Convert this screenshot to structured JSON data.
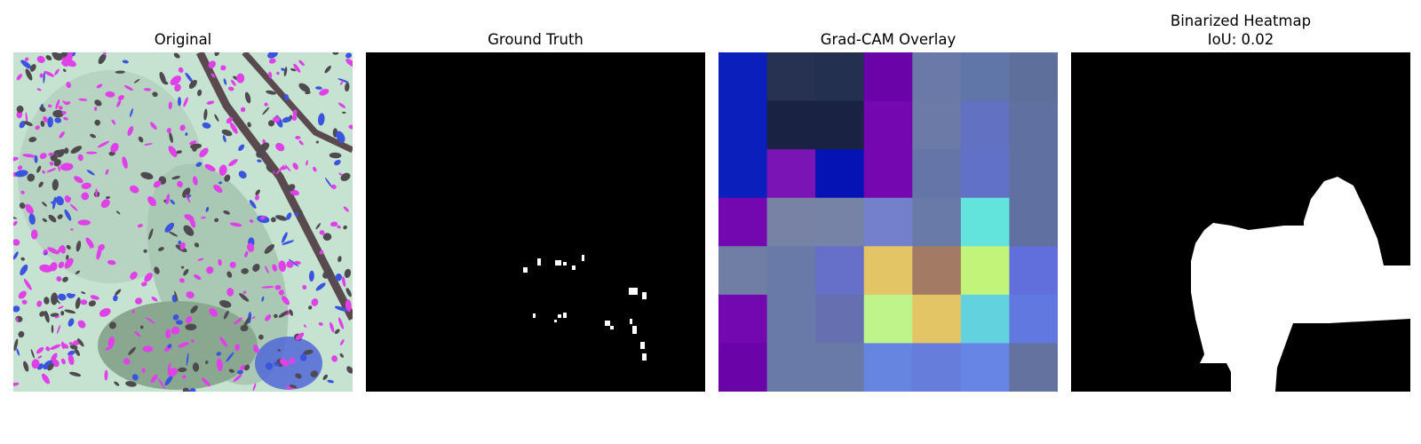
{
  "figure": {
    "panels": [
      {
        "title": "Original",
        "subtitle": ""
      },
      {
        "title": "Ground Truth",
        "subtitle": ""
      },
      {
        "title": "Grad-CAM Overlay",
        "subtitle": ""
      },
      {
        "title": "Binarized Heatmap",
        "subtitle": "IoU: 0.02"
      }
    ]
  },
  "chart_data": [
    {
      "type": "image",
      "title": "Original",
      "description_colors": {
        "leaf": "#c6e2d0",
        "pink": "#e040e8",
        "blue": "#3a54e0",
        "dark": "#4f4a50"
      }
    },
    {
      "type": "image",
      "title": "Ground Truth",
      "background": "#000000",
      "foreground": "#ffffff"
    },
    {
      "type": "heatmap",
      "title": "Grad-CAM Overlay",
      "rows": 7,
      "cols": 7,
      "cell_colors": [
        [
          "#0b1fbd",
          "#273152",
          "#23304f",
          "#6a03a8",
          "#6a79a8",
          "#6075a8",
          "#5f6f9c"
        ],
        [
          "#0b1fbd",
          "#1a2244",
          "#1a2244",
          "#7407b0",
          "#6b7aa6",
          "#6271c2",
          "#6070a0"
        ],
        [
          "#0b1fbd",
          "#7a14b4",
          "#0513b4",
          "#7407b0",
          "#6675a8",
          "#6271c8",
          "#6070a0"
        ],
        [
          "#7408b0",
          "#7782a5",
          "#7683a6",
          "#7480cc",
          "#6a7aa8",
          "#62e4dc",
          "#6070a0"
        ],
        [
          "#707ea6",
          "#6a7aa8",
          "#6670c8",
          "#e4c565",
          "#a37a63",
          "#c2f479",
          "#606fdc"
        ],
        [
          "#7408b0",
          "#6a7aa8",
          "#6670b0",
          "#bef48a",
          "#e4c565",
          "#62d2de",
          "#6078e0"
        ],
        [
          "#6b04a8",
          "#6a7aa8",
          "#6a7aa8",
          "#6685e0",
          "#667ddc",
          "#6785e4",
          "#6472a0"
        ]
      ]
    },
    {
      "type": "image",
      "title": "Binarized Heatmap",
      "subtitle": "IoU: 0.02",
      "iou": 0.02,
      "background": "#000000",
      "foreground": "#ffffff"
    }
  ]
}
